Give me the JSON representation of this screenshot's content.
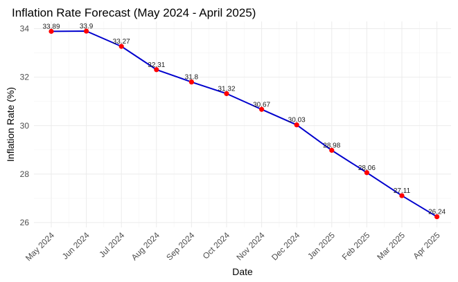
{
  "chart_data": {
    "type": "line",
    "title": "Inflation Rate Forecast (May 2024 - April 2025)",
    "xlabel": "Date",
    "ylabel": "Inflation Rate (%)",
    "categories": [
      "May 2024",
      "Jun 2024",
      "Jul 2024",
      "Aug 2024",
      "Sep 2024",
      "Oct 2024",
      "Nov 2024",
      "Dec 2024",
      "Jan 2025",
      "Feb 2025",
      "Mar 2025",
      "Apr 2025"
    ],
    "series": [
      {
        "values": [
          33.89,
          33.9,
          33.27,
          32.31,
          31.8,
          31.32,
          30.67,
          30.03,
          28.98,
          28.06,
          27.11,
          26.24
        ],
        "data_labels": [
          "33.89",
          "33.9",
          "33.27",
          "32.31",
          "31.8",
          "31.32",
          "30.67",
          "30.03",
          "28.98",
          "28.06",
          "27.11",
          "26.24"
        ]
      }
    ],
    "yticks": [
      26,
      28,
      30,
      32,
      34
    ],
    "ytick_labels": [
      "26",
      "28",
      "30",
      "32",
      "34"
    ],
    "ylim": [
      25.8,
      34.3
    ],
    "grid": true,
    "legend": "none",
    "colors": {
      "line": "#0000cd",
      "points": "#ff0000",
      "grid": "#ebebeb",
      "tick_text": "#4d4d4d"
    }
  }
}
